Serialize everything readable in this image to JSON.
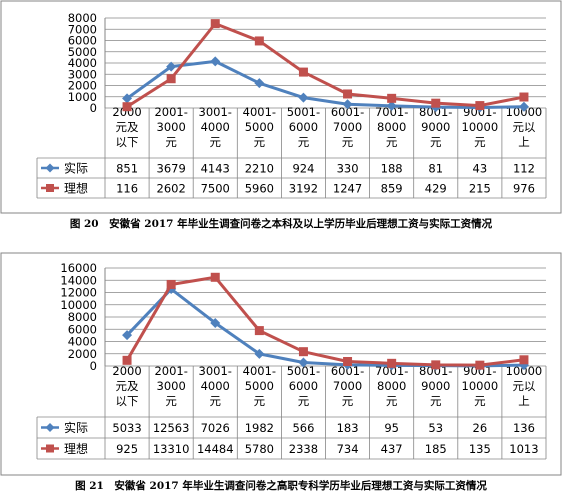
{
  "chart_data": [
    {
      "type": "line",
      "caption": "图 20　安徽省 2017 年毕业生调查问卷之本科及以上学历毕业后理想工资与实际工资情况",
      "categories": [
        [
          "2000",
          "元及",
          "以下"
        ],
        [
          "2001-",
          "3000",
          "元"
        ],
        [
          "3001-",
          "4000",
          "元"
        ],
        [
          "4001-",
          "5000",
          "元"
        ],
        [
          "5001-",
          "6000",
          "元"
        ],
        [
          "6001-",
          "7000",
          "元"
        ],
        [
          "7001-",
          "8000",
          "元"
        ],
        [
          "8001-",
          "9000",
          "元"
        ],
        [
          "9001-",
          "10000",
          "元"
        ],
        [
          "10000",
          "元以",
          "上"
        ]
      ],
      "ylim": [
        0,
        8000
      ],
      "yticks": [
        "0",
        "1000",
        "2000",
        "3000",
        "4000",
        "5000",
        "6000",
        "7000",
        "8000"
      ],
      "grid": true,
      "legend": "data-table",
      "series": [
        {
          "name": "实际",
          "color": "#4f81bd",
          "marker": "diamond",
          "values": [
            851,
            3679,
            4143,
            2210,
            924,
            330,
            188,
            81,
            43,
            112
          ]
        },
        {
          "name": "理想",
          "color": "#c0504d",
          "marker": "square",
          "values": [
            116,
            2602,
            7500,
            5960,
            3192,
            1247,
            859,
            429,
            215,
            976
          ]
        }
      ]
    },
    {
      "type": "line",
      "caption": "图 21　安徽省 2017 年毕业生调查问卷之高职专科学历毕业后理想工资与实际工资情况",
      "categories": [
        [
          "2000",
          "元及",
          "以下"
        ],
        [
          "2001-",
          "3000",
          "元"
        ],
        [
          "3001-",
          "4000",
          "元"
        ],
        [
          "4001-",
          "5000",
          "元"
        ],
        [
          "5001-",
          "6000",
          "元"
        ],
        [
          "6001-",
          "7000",
          "元"
        ],
        [
          "7001-",
          "8000",
          "元"
        ],
        [
          "8001-",
          "9000",
          "元"
        ],
        [
          "9001-",
          "10000",
          "元"
        ],
        [
          "10000",
          "元以",
          "上"
        ]
      ],
      "ylim": [
        0,
        16000
      ],
      "yticks": [
        "0",
        "2000",
        "4000",
        "6000",
        "8000",
        "10000",
        "12000",
        "14000",
        "16000"
      ],
      "grid": true,
      "legend": "data-table",
      "series": [
        {
          "name": "实际",
          "color": "#4f81bd",
          "marker": "diamond",
          "values": [
            5033,
            12563,
            7026,
            1982,
            566,
            183,
            95,
            53,
            26,
            136
          ]
        },
        {
          "name": "理想",
          "color": "#c0504d",
          "marker": "square",
          "values": [
            925,
            13310,
            14484,
            5780,
            2338,
            734,
            437,
            185,
            135,
            1013
          ]
        }
      ]
    }
  ]
}
